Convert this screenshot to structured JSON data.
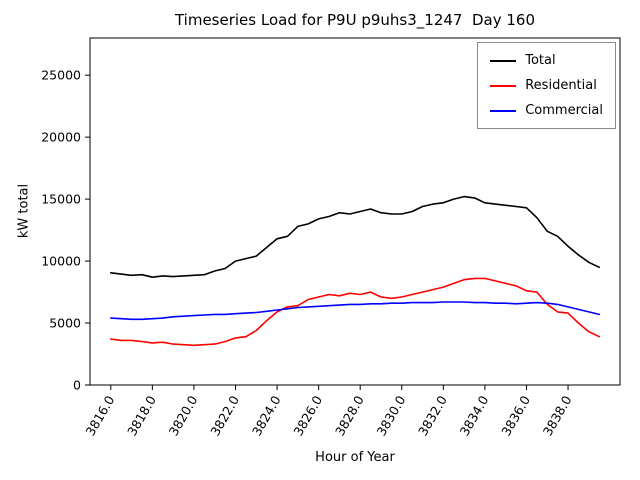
{
  "figure": {
    "title": "Timeseries Load for P9U p9uhs3_1247  Day 160",
    "xlabel": "Hour of Year",
    "ylabel": "kW total"
  },
  "chart_data": {
    "type": "line",
    "title": "Timeseries Load for P9U p9uhs3_1247  Day 160",
    "xlabel": "Hour of Year",
    "ylabel": "kW total",
    "xlim": [
      3815.0,
      3840.5
    ],
    "ylim": [
      0,
      28000
    ],
    "grid": false,
    "legend_position": "upper right",
    "yticks": [
      0,
      5000,
      10000,
      15000,
      20000,
      25000
    ],
    "ytick_labels": [
      "0",
      "5000",
      "10000",
      "15000",
      "20000",
      "25000"
    ],
    "xticks": [
      3816,
      3818,
      3820,
      3822,
      3824,
      3826,
      3828,
      3830,
      3832,
      3834,
      3836,
      3838
    ],
    "xtick_labels": [
      "3816.0",
      "3818.0",
      "3820.0",
      "3822.0",
      "3824.0",
      "3826.0",
      "3828.0",
      "3830.0",
      "3832.0",
      "3834.0",
      "3836.0",
      "3838.0"
    ],
    "x": [
      3816.0,
      3816.5,
      3817.0,
      3817.5,
      3818.0,
      3818.5,
      3819.0,
      3819.5,
      3820.0,
      3820.5,
      3821.0,
      3821.5,
      3822.0,
      3822.5,
      3823.0,
      3823.5,
      3824.0,
      3824.5,
      3825.0,
      3825.5,
      3826.0,
      3826.5,
      3827.0,
      3827.5,
      3828.0,
      3828.5,
      3829.0,
      3829.5,
      3830.0,
      3830.5,
      3831.0,
      3831.5,
      3832.0,
      3832.5,
      3833.0,
      3833.5,
      3834.0,
      3834.5,
      3835.0,
      3835.5,
      3836.0,
      3836.5,
      3837.0,
      3837.5,
      3838.0,
      3838.5,
      3839.0,
      3839.5
    ],
    "series": [
      {
        "name": "Total",
        "color": "#000000",
        "values": [
          9050,
          8950,
          8850,
          8900,
          8700,
          8800,
          8750,
          8800,
          8850,
          8900,
          9200,
          9400,
          10000,
          10200,
          10400,
          11100,
          11800,
          12000,
          12800,
          13000,
          13400,
          13600,
          13900,
          13800,
          14000,
          14200,
          13900,
          13800,
          13800,
          14000,
          14400,
          14600,
          14700,
          15000,
          15200,
          15100,
          14700,
          14600,
          14500,
          14400,
          14300,
          13500,
          12400,
          12000,
          11200,
          10500,
          9900,
          9500
        ]
      },
      {
        "name": "Residential",
        "color": "#ff0000",
        "values": [
          3700,
          3600,
          3600,
          3500,
          3400,
          3450,
          3300,
          3250,
          3200,
          3250,
          3300,
          3500,
          3800,
          3900,
          4400,
          5200,
          5900,
          6300,
          6400,
          6900,
          7100,
          7300,
          7200,
          7400,
          7300,
          7500,
          7100,
          7000,
          7100,
          7300,
          7500,
          7700,
          7900,
          8200,
          8500,
          8600,
          8600,
          8400,
          8200,
          8000,
          7600,
          7500,
          6500,
          5900,
          5800,
          5000,
          4300,
          3900
        ]
      },
      {
        "name": "Commercial",
        "color": "#0000ff",
        "values": [
          5400,
          5350,
          5300,
          5300,
          5350,
          5400,
          5500,
          5550,
          5600,
          5650,
          5700,
          5700,
          5750,
          5800,
          5850,
          5950,
          6050,
          6150,
          6250,
          6300,
          6350,
          6400,
          6450,
          6500,
          6500,
          6550,
          6550,
          6600,
          6600,
          6650,
          6650,
          6650,
          6700,
          6700,
          6700,
          6650,
          6650,
          6600,
          6600,
          6550,
          6600,
          6650,
          6600,
          6500,
          6300,
          6100,
          5900,
          5700
        ]
      }
    ]
  }
}
